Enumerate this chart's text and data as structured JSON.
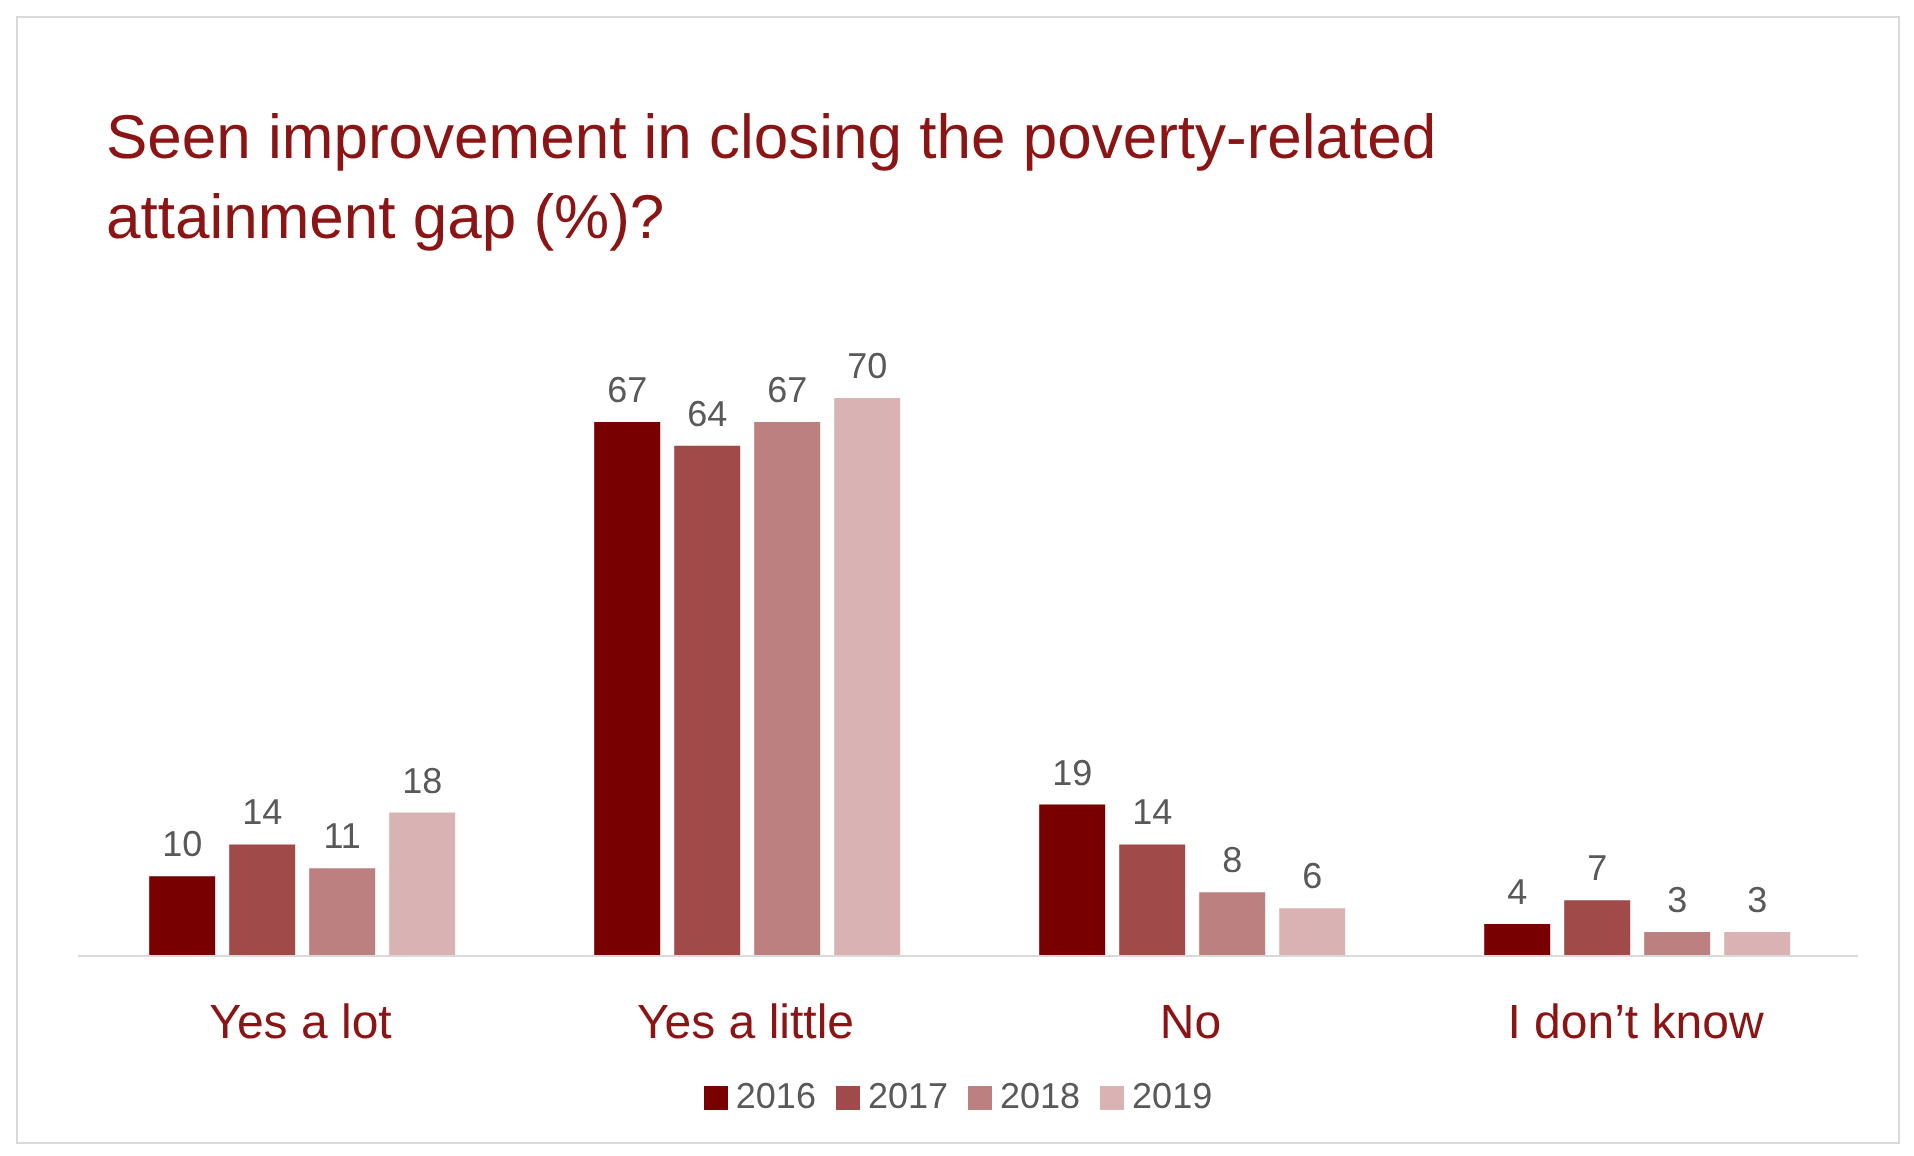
{
  "chart_data": {
    "type": "bar",
    "title": "Seen improvement in closing the poverty-related attainment gap (%)?",
    "categories": [
      "Yes a lot",
      "Yes a little",
      "No",
      "I don’t know"
    ],
    "series": [
      {
        "name": "2016",
        "color": "#780000",
        "values": [
          10,
          67,
          19,
          4
        ]
      },
      {
        "name": "2017",
        "color": "#a04a4a",
        "values": [
          14,
          64,
          14,
          7
        ]
      },
      {
        "name": "2018",
        "color": "#bc8080",
        "values": [
          11,
          67,
          8,
          3
        ]
      },
      {
        "name": "2019",
        "color": "#d9b3b3",
        "values": [
          18,
          70,
          6,
          3
        ]
      }
    ],
    "data_labels": true,
    "legend": "bottom",
    "grid": false
  }
}
